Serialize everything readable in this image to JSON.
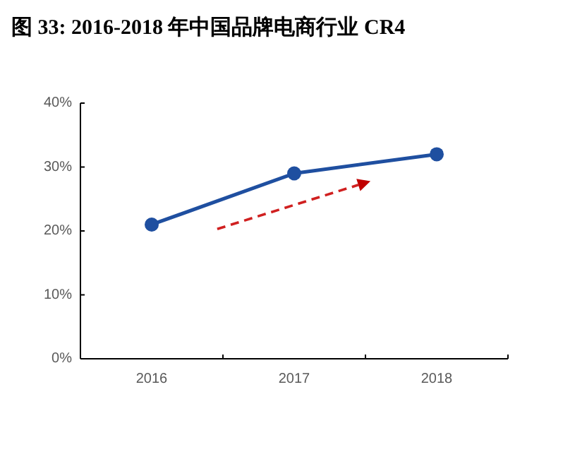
{
  "chart_data": {
    "type": "line",
    "title": "图 33:  2016-2018 年中国品牌电商行业 CR4",
    "categories": [
      "2016",
      "2017",
      "2018"
    ],
    "series": [
      {
        "color": "#1f4fa0",
        "values": [
          21,
          29,
          32
        ]
      }
    ],
    "ylim": [
      0,
      40
    ],
    "yticks": [
      {
        "value": 0,
        "label": "0%"
      },
      {
        "value": 10,
        "label": "10%"
      },
      {
        "value": 20,
        "label": "20%"
      },
      {
        "value": 30,
        "label": "30%"
      },
      {
        "value": 40,
        "label": "40%"
      }
    ],
    "marker": "circle",
    "line_style": "solid"
  }
}
